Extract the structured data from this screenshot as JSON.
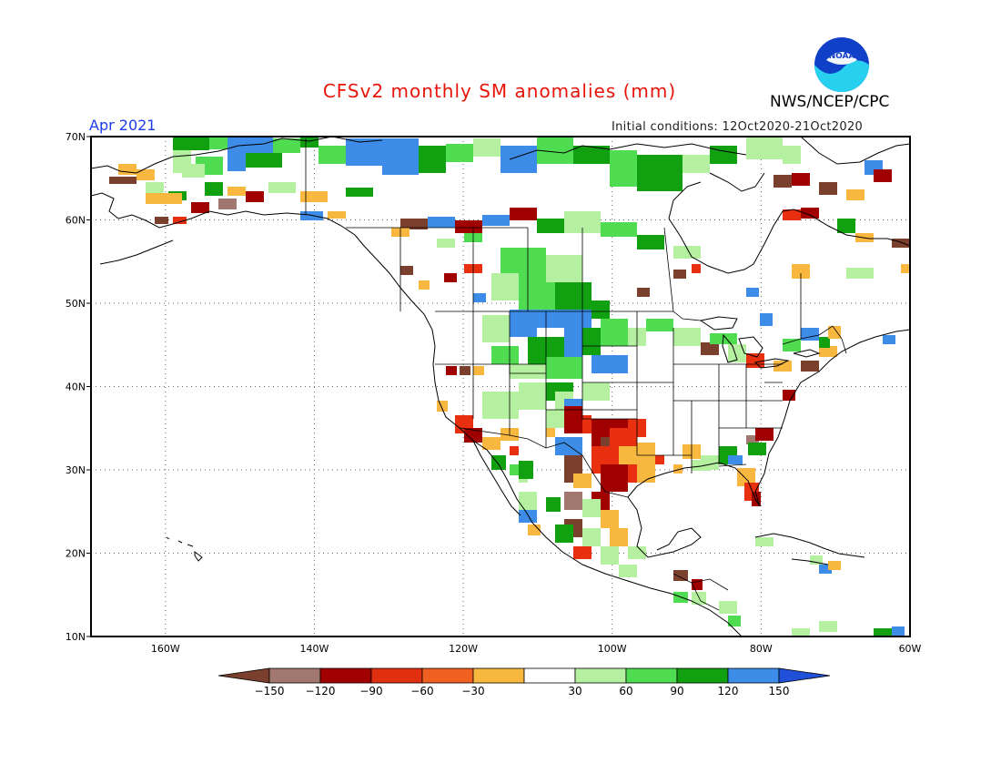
{
  "header": {
    "title": "CFSv2 monthly SM anomalies (mm)",
    "agency": "NWS/NCEP/CPC",
    "valid_month": "Apr 2021",
    "initial_conditions": "Initial conditions: 12Oct2020-21Oct2020",
    "logo_text": "NOAA"
  },
  "axes": {
    "lat_labels": [
      "70N",
      "60N",
      "50N",
      "40N",
      "30N",
      "20N",
      "10N"
    ],
    "lon_labels": [
      "160W",
      "140W",
      "120W",
      "100W",
      "80W",
      "60W"
    ]
  },
  "colorbar": {
    "labels": [
      "-150",
      "-120",
      "-90",
      "-60",
      "-30",
      "30",
      "60",
      "90",
      "120",
      "150"
    ],
    "colors": [
      "#7b3f2e",
      "#a07870",
      "#a00000",
      "#e03010",
      "#f06020",
      "#f8b840",
      "#ffffff",
      "#b4f0a0",
      "#50dc50",
      "#10a010",
      "#3c8ce8",
      "#2050d8"
    ]
  },
  "anomaly_colors": {
    "very_dry": "#7b3f2e",
    "dry_brown": "#a07870",
    "dry_red": "#a00000",
    "dry_orange_red": "#e83010",
    "dry_orange": "#f8b840",
    "wet_light": "#b4f0a0",
    "wet_green": "#50dc50",
    "wet_dark_green": "#10a010",
    "wet_blue": "#3c8ce8"
  }
}
